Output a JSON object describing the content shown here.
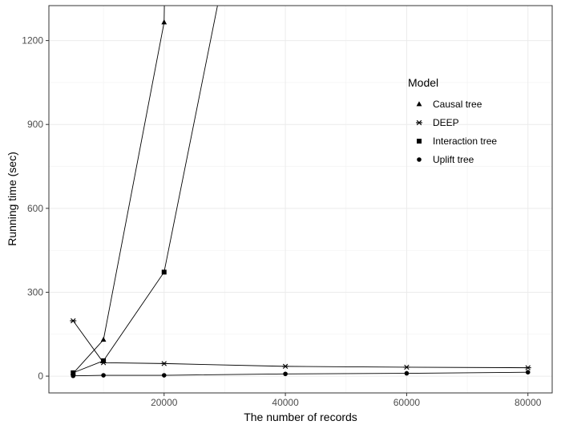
{
  "chart_data": {
    "type": "line",
    "xlabel": "The number of records",
    "ylabel": "Running time (sec)",
    "xlim": [
      1000,
      84000
    ],
    "ylim": [
      -60,
      1325
    ],
    "x_ticks": [
      20000,
      40000,
      60000,
      80000
    ],
    "x_tick_labels": [
      "20000",
      "40000",
      "60000",
      "80000"
    ],
    "y_ticks": [
      0,
      300,
      600,
      900,
      1200
    ],
    "y_tick_labels": [
      "0",
      "300",
      "600",
      "900",
      "1200"
    ],
    "grid": true,
    "legend": {
      "title": "Model",
      "placement": "right",
      "entries": [
        "Causal tree",
        "DEEP",
        "Interaction tree",
        "Uplift tree"
      ]
    },
    "series": [
      {
        "name": "Causal tree",
        "marker": "triangle",
        "points": [
          [
            5000,
            10
          ],
          [
            10000,
            130
          ],
          [
            20000,
            1265
          ],
          [
            20100,
            1400
          ]
        ]
      },
      {
        "name": "DEEP",
        "marker": "asterisk",
        "points": [
          [
            5000,
            198
          ],
          [
            10000,
            48
          ],
          [
            20000,
            45
          ],
          [
            40000,
            35
          ],
          [
            60000,
            32
          ],
          [
            80000,
            30
          ]
        ]
      },
      {
        "name": "Interaction tree",
        "marker": "square",
        "points": [
          [
            5000,
            12
          ],
          [
            10000,
            55
          ],
          [
            20000,
            372
          ],
          [
            29500,
            1400
          ]
        ]
      },
      {
        "name": "Uplift tree",
        "marker": "circle",
        "points": [
          [
            5000,
            1
          ],
          [
            10000,
            3
          ],
          [
            20000,
            3
          ],
          [
            40000,
            8
          ],
          [
            60000,
            10
          ],
          [
            80000,
            14
          ]
        ]
      }
    ]
  }
}
